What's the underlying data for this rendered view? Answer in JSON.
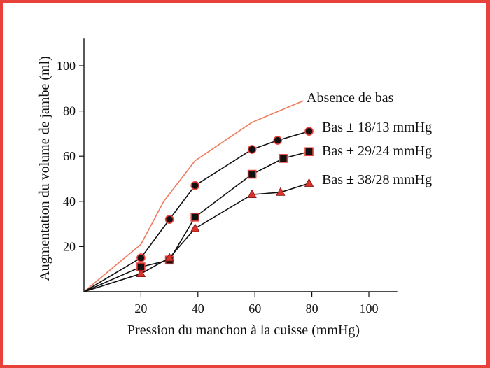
{
  "chart_data": {
    "type": "line",
    "title": "",
    "xlabel": "Pression du manchon à la cuisse (mmHg)",
    "ylabel": "Augmentation du volume de jambe (ml)",
    "xlim": [
      0,
      110
    ],
    "ylim": [
      0,
      112
    ],
    "xticks": [
      20,
      40,
      60,
      80,
      100
    ],
    "yticks": [
      20,
      40,
      60,
      80,
      100
    ],
    "grid": false,
    "legend": "inline labels at line ends",
    "colors": {
      "frame": "#e8413c",
      "no_stocking_line": "#f07a5c",
      "series_line": "#111111",
      "marker_fill": "#111111",
      "marker_outline": "#e8413c",
      "triangle_fill": "#d9342b"
    },
    "series": [
      {
        "name": "Absence de bas",
        "marker": "none",
        "points": [
          [
            0,
            0
          ],
          [
            20,
            21
          ],
          [
            28,
            40
          ],
          [
            39,
            58
          ],
          [
            59,
            75
          ],
          [
            77,
            84.5
          ]
        ]
      },
      {
        "name": "Bas ± 18/13 mmHg",
        "marker": "circle",
        "points": [
          [
            0,
            0
          ],
          [
            20,
            15
          ],
          [
            30,
            32
          ],
          [
            39,
            47
          ],
          [
            59,
            63
          ],
          [
            68,
            67
          ],
          [
            79,
            71
          ]
        ]
      },
      {
        "name": "Bas ± 29/24 mmHg",
        "marker": "square",
        "points": [
          [
            0,
            0
          ],
          [
            20,
            11
          ],
          [
            30,
            14
          ],
          [
            39,
            33
          ],
          [
            59,
            52
          ],
          [
            70,
            59
          ],
          [
            79,
            62
          ]
        ]
      },
      {
        "name": "Bas ± 38/28 mmHg",
        "marker": "triangle",
        "points": [
          [
            0,
            0
          ],
          [
            20,
            8
          ],
          [
            30,
            15
          ],
          [
            39,
            28
          ],
          [
            59,
            43
          ],
          [
            69,
            44
          ],
          [
            79,
            48
          ]
        ]
      }
    ]
  }
}
